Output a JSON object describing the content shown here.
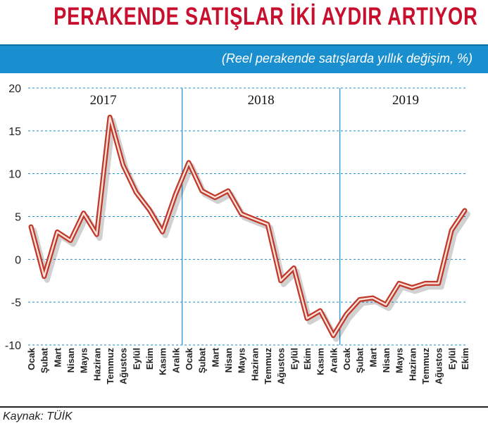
{
  "header": {
    "title": "PERAKENDE SATIŞLAR İKİ AYDIR ARTIYOR",
    "subtitle": "(Reel perakende satışlarda yıllık değişim, %)"
  },
  "footer": {
    "source": "Kaynak: TÜİK"
  },
  "colors": {
    "title": "#c8102e",
    "band": "#1a8fd0",
    "line_outer": "#c0392b",
    "line_inner": "#fbe3dc",
    "grid": "#1a8fd0"
  },
  "chart_data": {
    "type": "line",
    "title": "",
    "xlabel": "",
    "ylabel": "",
    "ylim": [
      -10,
      20
    ],
    "yticks": [
      20,
      15,
      10,
      5,
      0,
      -5,
      -10
    ],
    "grid": "horizontal-dashed",
    "categories": [
      "Ocak",
      "Şubat",
      "Mart",
      "Nisan",
      "Mayıs",
      "Haziran",
      "Temmuz",
      "Ağustos",
      "Eylül",
      "Ekim",
      "Kasım",
      "Aralık",
      "Ocak",
      "Şubat",
      "Mart",
      "Nisan",
      "Mayıs",
      "Haziran",
      "Temmuz",
      "Ağustos",
      "Eylül",
      "Ekim",
      "Kasım",
      "Aralık",
      "Ocak",
      "Şubat",
      "Mart",
      "Nisan",
      "Mayıs",
      "Haziran",
      "Temmuz",
      "Ağustos",
      "Eylül",
      "Ekim"
    ],
    "years": [
      {
        "label": "2017",
        "start": 0,
        "end": 11
      },
      {
        "label": "2018",
        "start": 12,
        "end": 23
      },
      {
        "label": "2019",
        "start": 24,
        "end": 33
      }
    ],
    "series": [
      {
        "values": [
          3.8,
          -2.0,
          3.2,
          2.2,
          5.4,
          2.9,
          16.6,
          11.0,
          7.8,
          5.8,
          3.2,
          7.6,
          11.3,
          8.0,
          7.2,
          8.0,
          5.3,
          4.7,
          4.1,
          -2.5,
          -1.0,
          -6.9,
          -6.0,
          -8.9,
          -6.4,
          -4.7,
          -4.5,
          -5.3,
          -2.8,
          -3.3,
          -2.8,
          -2.8,
          3.4,
          5.7
        ]
      }
    ]
  }
}
